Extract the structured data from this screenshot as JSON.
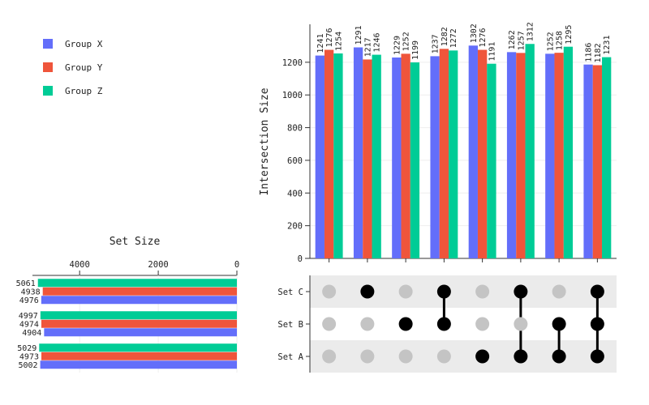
{
  "chart_data": {
    "type": "upset",
    "colors": {
      "Group X": "#636efa",
      "Group Y": "#ef553b",
      "Group Z": "#00cc96",
      "dot_on": "#000000",
      "dot_off": "#c4c4c4",
      "stripe": "#ebebeb"
    },
    "legend": {
      "position": "top-left",
      "entries": [
        "Group X",
        "Group Y",
        "Group Z"
      ]
    },
    "intersections": {
      "ylabel": "Intersection Size",
      "ylim": [
        0,
        1400
      ],
      "yticks": [
        "0",
        "200",
        "400",
        "600",
        "800",
        "1000",
        "1200"
      ],
      "series": [
        {
          "name": "Group X",
          "values": [
            1241,
            1291,
            1229,
            1237,
            1302,
            1262,
            1252,
            1186
          ]
        },
        {
          "name": "Group Y",
          "values": [
            1276,
            1217,
            1252,
            1282,
            1276,
            1257,
            1258,
            1182
          ]
        },
        {
          "name": "Group Z",
          "values": [
            1254,
            1246,
            1199,
            1272,
            1191,
            1312,
            1295,
            1231
          ]
        }
      ]
    },
    "sets": {
      "names": [
        "Set C",
        "Set B",
        "Set A"
      ],
      "xlabel": "Set Size",
      "xticks": [
        "4000",
        "2000",
        "0"
      ],
      "xlim": [
        0,
        5200
      ],
      "sizes": [
        {
          "set": "Set C",
          "Group Z": 5061,
          "Group Y": 4938,
          "Group X": 4976
        },
        {
          "set": "Set B",
          "Group Z": 4997,
          "Group Y": 4974,
          "Group X": 4904
        },
        {
          "set": "Set A",
          "Group Z": 5029,
          "Group Y": 4973,
          "Group X": 5002
        }
      ]
    },
    "membership": [
      [],
      [
        "Set C"
      ],
      [
        "Set B"
      ],
      [
        "Set C",
        "Set B"
      ],
      [
        "Set A"
      ],
      [
        "Set C",
        "Set A"
      ],
      [
        "Set B",
        "Set A"
      ],
      [
        "Set C",
        "Set B",
        "Set A"
      ]
    ]
  }
}
